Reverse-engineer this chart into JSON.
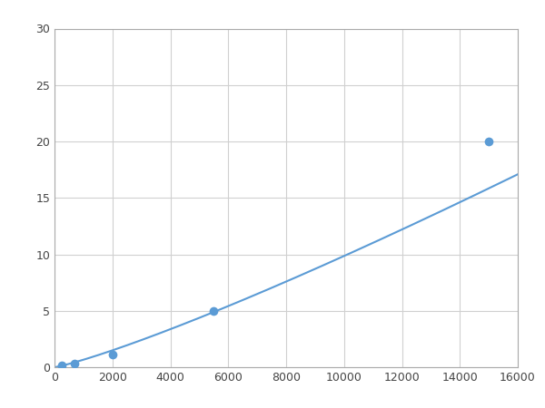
{
  "x_points": [
    250,
    700,
    2000,
    5500,
    15000
  ],
  "y_points": [
    0.2,
    0.3,
    1.1,
    5.0,
    20.0
  ],
  "line_color": "#5b9bd5",
  "marker_color": "#5b9bd5",
  "marker_size": 7,
  "line_width": 1.5,
  "xlim": [
    0,
    16000
  ],
  "ylim": [
    0,
    30
  ],
  "xticks": [
    0,
    2000,
    4000,
    6000,
    8000,
    10000,
    12000,
    14000,
    16000
  ],
  "yticks": [
    0,
    5,
    10,
    15,
    20,
    25,
    30
  ],
  "grid_color": "#d0d0d0",
  "background_color": "#ffffff",
  "figsize": [
    6.0,
    4.5
  ],
  "dpi": 100
}
